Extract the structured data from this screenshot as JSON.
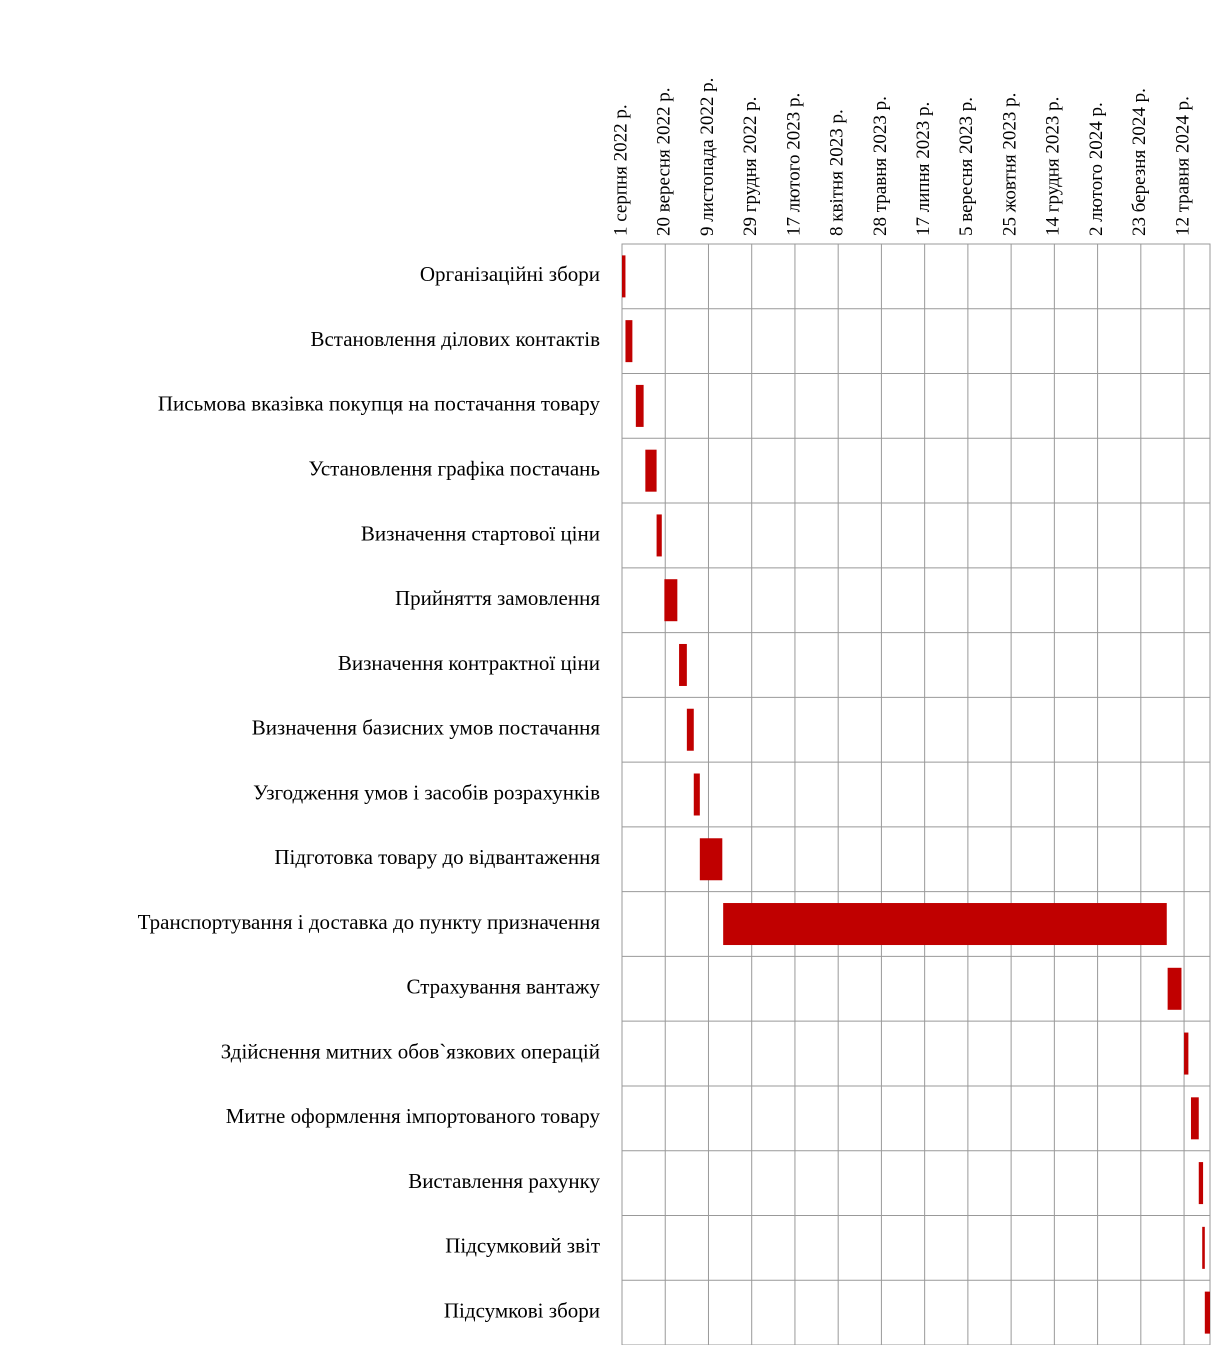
{
  "chart_data": {
    "type": "gantt",
    "color": "#c00000",
    "grid": true,
    "categories": [
      "Організаційні збори",
      "Встановлення ділових контактів",
      "Письмова вказівка покупця на постачання товару",
      "Установлення графіка постачань",
      "Визначення стартової ціни",
      "Прийняття замовлення",
      "Визначення контрактної ціни",
      "Визначення базисних умов постачання",
      "Узгодження умов і засобів розрахунків",
      "Підготовка товару до відвантаження",
      "Транспортування і доставка до пункту призначення",
      "Страхування вантажу",
      "Здійснення митних обов`язкових операцій",
      "Митне оформлення імпортованого товару",
      "Виставлення рахунку",
      "Підсумковий звіт",
      "Підсумкові збори"
    ],
    "start": [
      "2022-08-01",
      "2022-08-05",
      "2022-08-17",
      "2022-08-28",
      "2022-09-10",
      "2022-09-19",
      "2022-10-06",
      "2022-10-15",
      "2022-10-23",
      "2022-10-30",
      "2022-11-26",
      "2024-04-23",
      "2024-05-12",
      "2024-05-20",
      "2024-05-29",
      "2024-06-02",
      "2024-06-05"
    ],
    "end": [
      "2022-08-05",
      "2022-08-13",
      "2022-08-26",
      "2022-09-10",
      "2022-09-16",
      "2022-10-04",
      "2022-10-15",
      "2022-10-23",
      "2022-10-30",
      "2022-11-25",
      "2024-04-22",
      "2024-05-09",
      "2024-05-17",
      "2024-05-29",
      "2024-06-03",
      "2024-06-05",
      "2024-06-11"
    ],
    "xlim": [
      "2022-08-01",
      "2024-06-11"
    ],
    "xticks": [
      {
        "value": "2022-08-01",
        "label": "1 серпня 2022 р."
      },
      {
        "value": "2022-09-20",
        "label": "20 вересня 2022 р."
      },
      {
        "value": "2022-11-09",
        "label": "9 листопада 2022 р."
      },
      {
        "value": "2022-12-29",
        "label": "29 грудня 2022 р."
      },
      {
        "value": "2023-02-17",
        "label": "17 лютого 2023 р."
      },
      {
        "value": "2023-04-08",
        "label": "8 квітня 2023 р."
      },
      {
        "value": "2023-05-28",
        "label": "28 травня 2023 р."
      },
      {
        "value": "2023-07-17",
        "label": "17 липня 2023 р."
      },
      {
        "value": "2023-09-05",
        "label": "5 вересня 2023 р."
      },
      {
        "value": "2023-10-25",
        "label": "25 жовтня 2023 р."
      },
      {
        "value": "2023-12-14",
        "label": "14 грудня 2023 р."
      },
      {
        "value": "2024-02-02",
        "label": "2 лютого 2024 р."
      },
      {
        "value": "2024-03-23",
        "label": "23 березня 2024 р."
      },
      {
        "value": "2024-05-12",
        "label": "12 травня 2024 р."
      }
    ]
  }
}
